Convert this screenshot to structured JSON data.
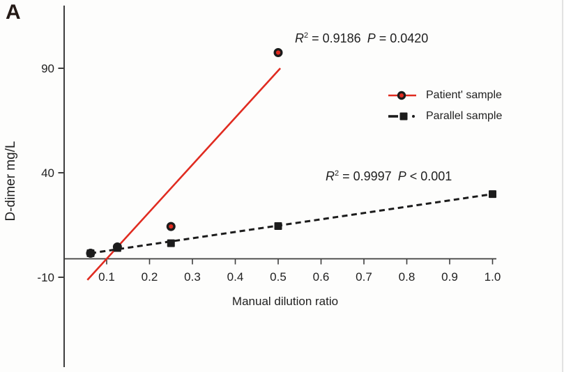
{
  "panel_label": "A",
  "chart_data": {
    "type": "scatter",
    "title": "",
    "xlabel": "Manual dilution ratio",
    "ylabel": "D-dimer mg/L",
    "x_ticks": [
      0.1,
      0.2,
      0.3,
      0.4,
      0.5,
      0.6,
      0.7,
      0.8,
      0.9,
      1.0
    ],
    "x_tick_labels": [
      "0.1",
      "0.2",
      "0.3",
      "0.4",
      "0.5",
      "0.6",
      "0.7",
      "0.8",
      "0.9",
      "1.0"
    ],
    "y_ticks": [
      90,
      40,
      -10
    ],
    "y_tick_labels": [
      "90",
      "40",
      "-10"
    ],
    "xlim": [
      0,
      1.01
    ],
    "ylim": [
      -53,
      120
    ],
    "grid": false,
    "legend_position": "upper right",
    "series": [
      {
        "name": "Patient' sample",
        "marker": "circle",
        "line_style": "solid",
        "points": [
          [
            0.0625,
            1.5
          ],
          [
            0.125,
            4.5
          ],
          [
            0.25,
            14.3
          ],
          [
            0.5,
            97.5
          ]
        ],
        "trend_line": {
          "x1": 0.055,
          "y1": -11.3,
          "x2": 0.505,
          "y2": 90
        },
        "r2": "0.9186",
        "p": "0.0420"
      },
      {
        "name": "Parallel sample",
        "marker": "square",
        "line_style": "dashed",
        "points": [
          [
            0.0625,
            1.5
          ],
          [
            0.125,
            4.0
          ],
          [
            0.25,
            6.3
          ],
          [
            0.5,
            14.5
          ],
          [
            1.0,
            29.8
          ]
        ],
        "trend_line": {
          "x1": 0.0625,
          "y1": 1.5,
          "x2": 1.0,
          "y2": 29.8
        },
        "r2": "0.9997",
        "p": "0.001"
      }
    ],
    "annotations": [
      {
        "r_label": "R",
        "r_sup": "2",
        "eq": "=",
        "r2_value": "0.9186",
        "p_label": "P",
        "p_op": "=",
        "p_value": "0.0420"
      },
      {
        "r_label": "R",
        "r_sup": "2",
        "eq": "=",
        "r2_value": "0.9997",
        "p_label": "P",
        "p_op": "<",
        "p_value": "0.001"
      }
    ],
    "legend": [
      {
        "label": "Patient' sample"
      },
      {
        "label": "Parallel sample"
      }
    ]
  },
  "colors": {
    "accent_red": "#e02b20",
    "marker_black": "#1c1c1c",
    "axis_gray": "#3d3d3d",
    "text": "#1f1f1f",
    "panel_edge": "#d9d9d9"
  }
}
